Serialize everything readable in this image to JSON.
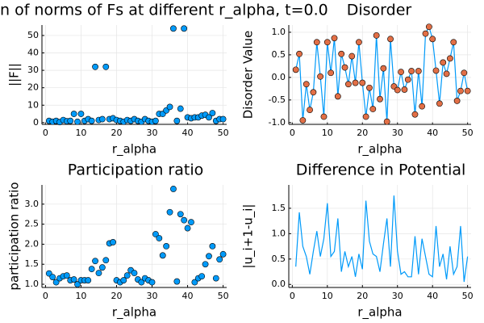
{
  "chart_data": [
    {
      "type": "scatter",
      "title": "n of norms of Fs at different r_alpha, t=0.0",
      "xlabel": "r_alpha",
      "ylabel": "||F||",
      "x": [
        1,
        2,
        3,
        4,
        5,
        6,
        7,
        8,
        9,
        10,
        11,
        12,
        13,
        14,
        15,
        16,
        17,
        18,
        19,
        20,
        21,
        22,
        23,
        24,
        25,
        26,
        27,
        28,
        29,
        30,
        31,
        32,
        33,
        34,
        35,
        36,
        37,
        38,
        39,
        40,
        41,
        42,
        43,
        44,
        45,
        46,
        47,
        48,
        49,
        50
      ],
      "values": [
        1,
        0.5,
        1,
        0.3,
        1.5,
        0.8,
        1,
        5,
        0.5,
        5,
        1,
        2,
        1,
        32,
        1.5,
        2,
        32,
        2,
        2.5,
        1.5,
        1,
        0.5,
        1.5,
        1,
        2,
        1,
        0.5,
        2,
        1,
        0.5,
        1,
        5,
        5,
        7,
        9,
        54,
        1,
        8,
        54,
        3,
        2.5,
        3,
        3,
        4,
        4.5,
        3,
        5.5,
        1,
        2,
        2
      ],
      "color": "#009af9",
      "xlim": [
        -1,
        51
      ],
      "ylim": [
        -1,
        56
      ],
      "xticks": [
        0,
        10,
        20,
        30,
        40,
        50
      ],
      "yticks": [
        0,
        10,
        20,
        30,
        40,
        50
      ],
      "grid": true
    },
    {
      "type": "line",
      "title": "Disorder",
      "xlabel": "r_alpha",
      "ylabel": "Disorder Value",
      "x": [
        1,
        2,
        3,
        4,
        5,
        6,
        7,
        8,
        9,
        10,
        11,
        12,
        13,
        14,
        15,
        16,
        17,
        18,
        19,
        20,
        21,
        22,
        23,
        24,
        25,
        26,
        27,
        28,
        29,
        30,
        31,
        32,
        33,
        34,
        35,
        36,
        37,
        38,
        39,
        40,
        41,
        42,
        43,
        44,
        45,
        46,
        47,
        48,
        49,
        50
      ],
      "values": [
        0.17,
        0.52,
        -0.95,
        -0.15,
        -0.72,
        -0.33,
        0.78,
        0.02,
        -0.87,
        0.78,
        0.1,
        0.87,
        -0.42,
        0.52,
        0.22,
        -0.15,
        0.47,
        -0.12,
        0.78,
        -0.12,
        -0.87,
        -0.23,
        -0.7,
        0.93,
        -0.48,
        0.2,
        -0.98,
        0.85,
        -0.2,
        -0.28,
        0.12,
        -0.27,
        -0.05,
        0.14,
        -0.82,
        0.14,
        -0.64,
        0.97,
        1.12,
        0.85,
        0.15,
        -0.58,
        0.33,
        0.08,
        0.42,
        0.78,
        -0.52,
        -0.3,
        0.1,
        -0.3
      ],
      "color": "#009af9",
      "marker_color": "#e26f46",
      "xlim": [
        -1,
        51
      ],
      "ylim": [
        -1.04,
        1.16
      ],
      "xticks": [
        0,
        10,
        20,
        30,
        40,
        50
      ],
      "yticks": [
        {
          "value": -1,
          "label": "-1.0"
        },
        -0.5,
        {
          "value": 0,
          "label": "0.0"
        },
        0.5,
        {
          "value": 1,
          "label": "1.0"
        }
      ],
      "grid": true
    },
    {
      "type": "scatter",
      "title": "Participation ratio",
      "xlabel": "r_alpha",
      "ylabel": "participation ratio",
      "x": [
        1,
        2,
        3,
        4,
        5,
        6,
        7,
        8,
        9,
        10,
        11,
        12,
        13,
        14,
        15,
        16,
        17,
        18,
        19,
        20,
        21,
        22,
        23,
        24,
        25,
        26,
        27,
        28,
        29,
        30,
        31,
        32,
        33,
        34,
        35,
        36,
        37,
        38,
        39,
        40,
        41,
        42,
        43,
        44,
        45,
        46,
        47,
        48,
        49,
        50
      ],
      "values": [
        1.27,
        1.18,
        1.05,
        1.15,
        1.2,
        1.22,
        1.1,
        1.12,
        1.0,
        1.1,
        1.1,
        1.1,
        1.38,
        1.58,
        1.28,
        1.42,
        1.6,
        2.02,
        2.05,
        1.1,
        1.05,
        1.1,
        1.22,
        1.35,
        1.28,
        1.12,
        1.05,
        1.15,
        1.1,
        1.05,
        2.25,
        2.15,
        1.72,
        1.95,
        2.8,
        3.38,
        1.07,
        2.75,
        2.6,
        2.4,
        2.55,
        1.05,
        1.15,
        1.2,
        1.5,
        1.7,
        1.95,
        1.15,
        1.62,
        1.75
      ],
      "color": "#009af9",
      "xlim": [
        -1,
        51
      ],
      "ylim": [
        0.92,
        3.48
      ],
      "xticks": [
        0,
        10,
        20,
        30,
        40,
        50
      ],
      "yticks": [
        {
          "value": 1,
          "label": "1.0"
        },
        1.5,
        {
          "value": 2,
          "label": "2.0"
        },
        2.5,
        {
          "value": 3,
          "label": "3.0"
        }
      ],
      "grid": true
    },
    {
      "type": "line",
      "title": "Difference in Potential",
      "xlabel": "r_alpha",
      "ylabel": "|u_i+1-u_i|",
      "x": [
        1,
        2,
        3,
        4,
        5,
        6,
        7,
        8,
        9,
        10,
        11,
        12,
        13,
        14,
        15,
        16,
        17,
        18,
        19,
        20,
        21,
        22,
        23,
        24,
        25,
        26,
        27,
        28,
        29,
        30,
        31,
        32,
        33,
        34,
        35,
        36,
        37,
        38,
        39,
        40,
        41,
        42,
        43,
        44,
        45,
        46,
        47,
        48,
        49,
        50
      ],
      "values": [
        0.35,
        1.42,
        0.75,
        0.55,
        0.2,
        0.65,
        1.05,
        0.55,
        0.9,
        1.6,
        0.55,
        0.65,
        1.3,
        0.25,
        0.65,
        0.35,
        0.55,
        0.15,
        0.6,
        0.3,
        1.65,
        0.85,
        0.6,
        0.55,
        0.25,
        0.8,
        1.3,
        0.35,
        1.75,
        0.65,
        0.2,
        0.25,
        0.15,
        0.15,
        0.95,
        0.2,
        0.9,
        0.55,
        0.2,
        0.15,
        1.15,
        0.35,
        0.6,
        0.1,
        0.75,
        0.2,
        0.35,
        1.15,
        0.05,
        0.55
      ],
      "color": "#009af9",
      "xlim": [
        -1,
        51
      ],
      "ylim": [
        -0.06,
        1.96
      ],
      "xticks": [
        0,
        10,
        20,
        30,
        40,
        50
      ],
      "yticks": [
        {
          "value": 0,
          "label": "0.0"
        },
        0.5,
        {
          "value": 1,
          "label": "1.0"
        },
        1.5
      ],
      "grid": true
    }
  ]
}
